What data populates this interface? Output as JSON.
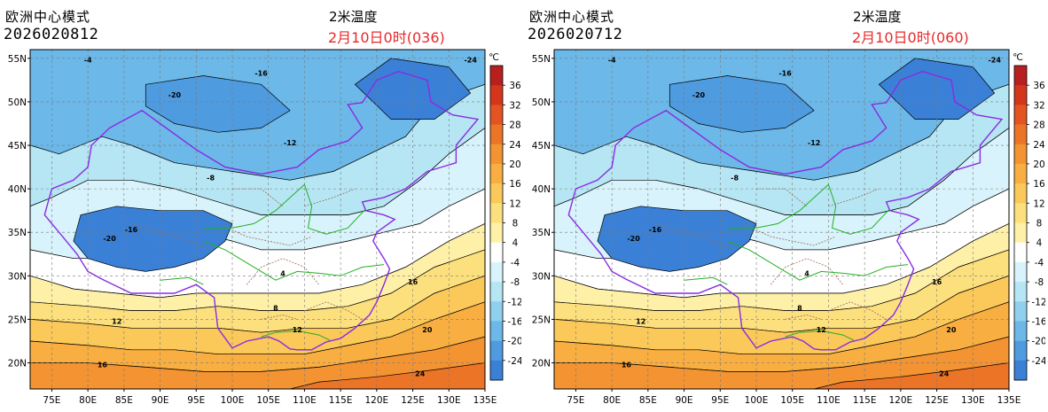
{
  "panels": [
    {
      "model": "欧洲中心模式",
      "run": "2026020812",
      "variable": "2米温度",
      "valid": "2月10日0时(036)"
    },
    {
      "model": "欧洲中心模式",
      "run": "2026020712",
      "variable": "2米温度",
      "valid": "2月10日0时(060)"
    }
  ],
  "map": {
    "lat_ticks": [
      "55N",
      "50N",
      "45N",
      "40N",
      "35N",
      "30N",
      "25N",
      "20N"
    ],
    "lon_ticks": [
      "75E",
      "80E",
      "85E",
      "90E",
      "95E",
      "100E",
      "105E",
      "110E",
      "115E",
      "120E",
      "125E",
      "130E",
      "135E"
    ],
    "lon_range": [
      72,
      135
    ],
    "lat_range": [
      17,
      56
    ]
  },
  "colorbar": {
    "unit": "℃",
    "labels": [
      "36",
      "32",
      "28",
      "24",
      "20",
      "16",
      "12",
      "8",
      "4",
      "-4",
      "-8",
      "-12",
      "-16",
      "-20",
      "-24"
    ],
    "colors": [
      "#b81f1f",
      "#d4361c",
      "#e45422",
      "#ec7426",
      "#f39331",
      "#f8ae40",
      "#fbc85a",
      "#fde07e",
      "#fff0a8",
      "#ffffff",
      "#d8f3fb",
      "#b6e6f4",
      "#8fd0ee",
      "#6cb8e8",
      "#4e9be0",
      "#3a80d6"
    ]
  },
  "contour_labels": [
    {
      "text": "-24",
      "lon": 133,
      "lat": 54.5
    },
    {
      "text": "-20",
      "lon": 92,
      "lat": 50.5
    },
    {
      "text": "-16",
      "lon": 104,
      "lat": 53
    },
    {
      "text": "-12",
      "lon": 108,
      "lat": 45
    },
    {
      "text": "-8",
      "lon": 97,
      "lat": 41
    },
    {
      "text": "-16",
      "lon": 86,
      "lat": 35
    },
    {
      "text": "-20",
      "lon": 83,
      "lat": 34
    },
    {
      "text": "-4",
      "lon": 80,
      "lat": 54.5
    },
    {
      "text": "4",
      "lon": 107,
      "lat": 30
    },
    {
      "text": "8",
      "lon": 106,
      "lat": 26
    },
    {
      "text": "12",
      "lon": 109,
      "lat": 23.5
    },
    {
      "text": "16",
      "lon": 125,
      "lat": 29
    },
    {
      "text": "20",
      "lon": 127,
      "lat": 23.5
    },
    {
      "text": "24",
      "lon": 126,
      "lat": 18.5
    },
    {
      "text": "12",
      "lon": 84,
      "lat": 24.5
    },
    {
      "text": "16",
      "lon": 82,
      "lat": 19.5
    }
  ]
}
